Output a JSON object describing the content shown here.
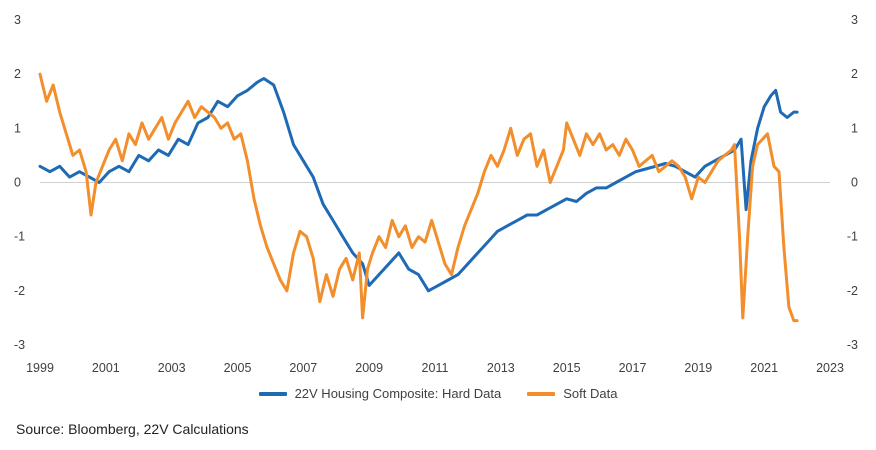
{
  "chart_data": {
    "type": "line",
    "title": "",
    "xlabel": "",
    "ylabel": "",
    "xlim": [
      1999,
      2023
    ],
    "ylim": [
      -3,
      3
    ],
    "x_ticks": [
      "1999",
      "2001",
      "2003",
      "2005",
      "2007",
      "2009",
      "2011",
      "2013",
      "2015",
      "2017",
      "2019",
      "2021",
      "2023"
    ],
    "y_ticks_left": [
      "3",
      "2",
      "1",
      "0",
      "-1",
      "-2",
      "-3"
    ],
    "y_ticks_right": [
      "3",
      "2",
      "1",
      "0",
      "-1",
      "-2",
      "-3"
    ],
    "grid": false,
    "legend_position": "bottom",
    "series": [
      {
        "name": "22V Housing Composite: Hard Data",
        "color": "#1f6ab5",
        "points": [
          [
            1999.0,
            0.3
          ],
          [
            1999.3,
            0.2
          ],
          [
            1999.6,
            0.3
          ],
          [
            1999.9,
            0.1
          ],
          [
            2000.2,
            0.2
          ],
          [
            2000.5,
            0.1
          ],
          [
            2000.8,
            0.0
          ],
          [
            2001.1,
            0.2
          ],
          [
            2001.4,
            0.3
          ],
          [
            2001.7,
            0.2
          ],
          [
            2002.0,
            0.5
          ],
          [
            2002.3,
            0.4
          ],
          [
            2002.6,
            0.6
          ],
          [
            2002.9,
            0.5
          ],
          [
            2003.2,
            0.8
          ],
          [
            2003.5,
            0.7
          ],
          [
            2003.8,
            1.1
          ],
          [
            2004.1,
            1.2
          ],
          [
            2004.4,
            1.5
          ],
          [
            2004.7,
            1.4
          ],
          [
            2005.0,
            1.6
          ],
          [
            2005.3,
            1.7
          ],
          [
            2005.6,
            1.85
          ],
          [
            2005.8,
            1.92
          ],
          [
            2006.1,
            1.8
          ],
          [
            2006.4,
            1.3
          ],
          [
            2006.7,
            0.7
          ],
          [
            2007.0,
            0.4
          ],
          [
            2007.3,
            0.1
          ],
          [
            2007.6,
            -0.4
          ],
          [
            2007.9,
            -0.7
          ],
          [
            2008.2,
            -1.0
          ],
          [
            2008.5,
            -1.3
          ],
          [
            2008.8,
            -1.5
          ],
          [
            2009.0,
            -1.9
          ],
          [
            2009.3,
            -1.7
          ],
          [
            2009.6,
            -1.5
          ],
          [
            2009.9,
            -1.3
          ],
          [
            2010.2,
            -1.6
          ],
          [
            2010.5,
            -1.7
          ],
          [
            2010.8,
            -2.0
          ],
          [
            2011.1,
            -1.9
          ],
          [
            2011.4,
            -1.8
          ],
          [
            2011.7,
            -1.7
          ],
          [
            2012.0,
            -1.5
          ],
          [
            2012.3,
            -1.3
          ],
          [
            2012.6,
            -1.1
          ],
          [
            2012.9,
            -0.9
          ],
          [
            2013.2,
            -0.8
          ],
          [
            2013.5,
            -0.7
          ],
          [
            2013.8,
            -0.6
          ],
          [
            2014.1,
            -0.6
          ],
          [
            2014.4,
            -0.5
          ],
          [
            2014.7,
            -0.4
          ],
          [
            2015.0,
            -0.3
          ],
          [
            2015.3,
            -0.35
          ],
          [
            2015.6,
            -0.2
          ],
          [
            2015.9,
            -0.1
          ],
          [
            2016.2,
            -0.1
          ],
          [
            2016.5,
            0.0
          ],
          [
            2016.8,
            0.1
          ],
          [
            2017.1,
            0.2
          ],
          [
            2017.4,
            0.25
          ],
          [
            2017.7,
            0.3
          ],
          [
            2018.0,
            0.35
          ],
          [
            2018.3,
            0.3
          ],
          [
            2018.6,
            0.2
          ],
          [
            2018.9,
            0.1
          ],
          [
            2019.2,
            0.3
          ],
          [
            2019.5,
            0.4
          ],
          [
            2019.8,
            0.5
          ],
          [
            2020.1,
            0.6
          ],
          [
            2020.3,
            0.8
          ],
          [
            2020.45,
            -0.5
          ],
          [
            2020.6,
            0.4
          ],
          [
            2020.8,
            1.0
          ],
          [
            2021.0,
            1.4
          ],
          [
            2021.2,
            1.6
          ],
          [
            2021.35,
            1.7
          ],
          [
            2021.5,
            1.3
          ],
          [
            2021.7,
            1.2
          ],
          [
            2021.9,
            1.3
          ],
          [
            2022.0,
            1.3
          ]
        ]
      },
      {
        "name": "Soft Data",
        "color": "#f28e2b",
        "points": [
          [
            1999.0,
            2.0
          ],
          [
            1999.2,
            1.5
          ],
          [
            1999.4,
            1.8
          ],
          [
            1999.6,
            1.3
          ],
          [
            1999.8,
            0.9
          ],
          [
            2000.0,
            0.5
          ],
          [
            2000.2,
            0.6
          ],
          [
            2000.4,
            0.2
          ],
          [
            2000.55,
            -0.6
          ],
          [
            2000.7,
            0.0
          ],
          [
            2000.9,
            0.3
          ],
          [
            2001.1,
            0.6
          ],
          [
            2001.3,
            0.8
          ],
          [
            2001.5,
            0.4
          ],
          [
            2001.7,
            0.9
          ],
          [
            2001.9,
            0.7
          ],
          [
            2002.1,
            1.1
          ],
          [
            2002.3,
            0.8
          ],
          [
            2002.5,
            1.0
          ],
          [
            2002.7,
            1.2
          ],
          [
            2002.9,
            0.8
          ],
          [
            2003.1,
            1.1
          ],
          [
            2003.3,
            1.3
          ],
          [
            2003.5,
            1.5
          ],
          [
            2003.7,
            1.2
          ],
          [
            2003.9,
            1.4
          ],
          [
            2004.1,
            1.3
          ],
          [
            2004.3,
            1.2
          ],
          [
            2004.5,
            1.0
          ],
          [
            2004.7,
            1.1
          ],
          [
            2004.9,
            0.8
          ],
          [
            2005.1,
            0.9
          ],
          [
            2005.3,
            0.4
          ],
          [
            2005.5,
            -0.3
          ],
          [
            2005.7,
            -0.8
          ],
          [
            2005.9,
            -1.2
          ],
          [
            2006.1,
            -1.5
          ],
          [
            2006.3,
            -1.8
          ],
          [
            2006.5,
            -2.0
          ],
          [
            2006.7,
            -1.3
          ],
          [
            2006.9,
            -0.9
          ],
          [
            2007.1,
            -1.0
          ],
          [
            2007.3,
            -1.4
          ],
          [
            2007.5,
            -2.2
          ],
          [
            2007.7,
            -1.7
          ],
          [
            2007.9,
            -2.1
          ],
          [
            2008.1,
            -1.6
          ],
          [
            2008.3,
            -1.4
          ],
          [
            2008.5,
            -1.8
          ],
          [
            2008.7,
            -1.3
          ],
          [
            2008.8,
            -2.5
          ],
          [
            2008.95,
            -1.6
          ],
          [
            2009.1,
            -1.3
          ],
          [
            2009.3,
            -1.0
          ],
          [
            2009.5,
            -1.2
          ],
          [
            2009.7,
            -0.7
          ],
          [
            2009.9,
            -1.0
          ],
          [
            2010.1,
            -0.8
          ],
          [
            2010.3,
            -1.2
          ],
          [
            2010.5,
            -1.0
          ],
          [
            2010.7,
            -1.1
          ],
          [
            2010.9,
            -0.7
          ],
          [
            2011.1,
            -1.1
          ],
          [
            2011.3,
            -1.5
          ],
          [
            2011.5,
            -1.7
          ],
          [
            2011.7,
            -1.2
          ],
          [
            2011.9,
            -0.8
          ],
          [
            2012.1,
            -0.5
          ],
          [
            2012.3,
            -0.2
          ],
          [
            2012.5,
            0.2
          ],
          [
            2012.7,
            0.5
          ],
          [
            2012.9,
            0.3
          ],
          [
            2013.1,
            0.6
          ],
          [
            2013.3,
            1.0
          ],
          [
            2013.5,
            0.5
          ],
          [
            2013.7,
            0.8
          ],
          [
            2013.9,
            0.9
          ],
          [
            2014.1,
            0.3
          ],
          [
            2014.3,
            0.6
          ],
          [
            2014.5,
            0.0
          ],
          [
            2014.7,
            0.3
          ],
          [
            2014.9,
            0.6
          ],
          [
            2015.0,
            1.1
          ],
          [
            2015.2,
            0.8
          ],
          [
            2015.4,
            0.5
          ],
          [
            2015.6,
            0.9
          ],
          [
            2015.8,
            0.7
          ],
          [
            2016.0,
            0.9
          ],
          [
            2016.2,
            0.6
          ],
          [
            2016.4,
            0.7
          ],
          [
            2016.6,
            0.5
          ],
          [
            2016.8,
            0.8
          ],
          [
            2017.0,
            0.6
          ],
          [
            2017.2,
            0.3
          ],
          [
            2017.4,
            0.4
          ],
          [
            2017.6,
            0.5
          ],
          [
            2017.8,
            0.2
          ],
          [
            2018.0,
            0.3
          ],
          [
            2018.2,
            0.4
          ],
          [
            2018.4,
            0.3
          ],
          [
            2018.6,
            0.1
          ],
          [
            2018.8,
            -0.3
          ],
          [
            2019.0,
            0.1
          ],
          [
            2019.2,
            0.0
          ],
          [
            2019.4,
            0.2
          ],
          [
            2019.6,
            0.4
          ],
          [
            2019.8,
            0.5
          ],
          [
            2020.0,
            0.6
          ],
          [
            2020.1,
            0.7
          ],
          [
            2020.25,
            -1.0
          ],
          [
            2020.35,
            -2.5
          ],
          [
            2020.5,
            -1.0
          ],
          [
            2020.65,
            0.3
          ],
          [
            2020.8,
            0.7
          ],
          [
            2020.95,
            0.8
          ],
          [
            2021.1,
            0.9
          ],
          [
            2021.3,
            0.3
          ],
          [
            2021.45,
            0.2
          ],
          [
            2021.6,
            -1.2
          ],
          [
            2021.75,
            -2.3
          ],
          [
            2021.9,
            -2.55
          ],
          [
            2022.0,
            -2.55
          ]
        ]
      }
    ]
  },
  "source_text": "Source: Bloomberg, 22V Calculations"
}
